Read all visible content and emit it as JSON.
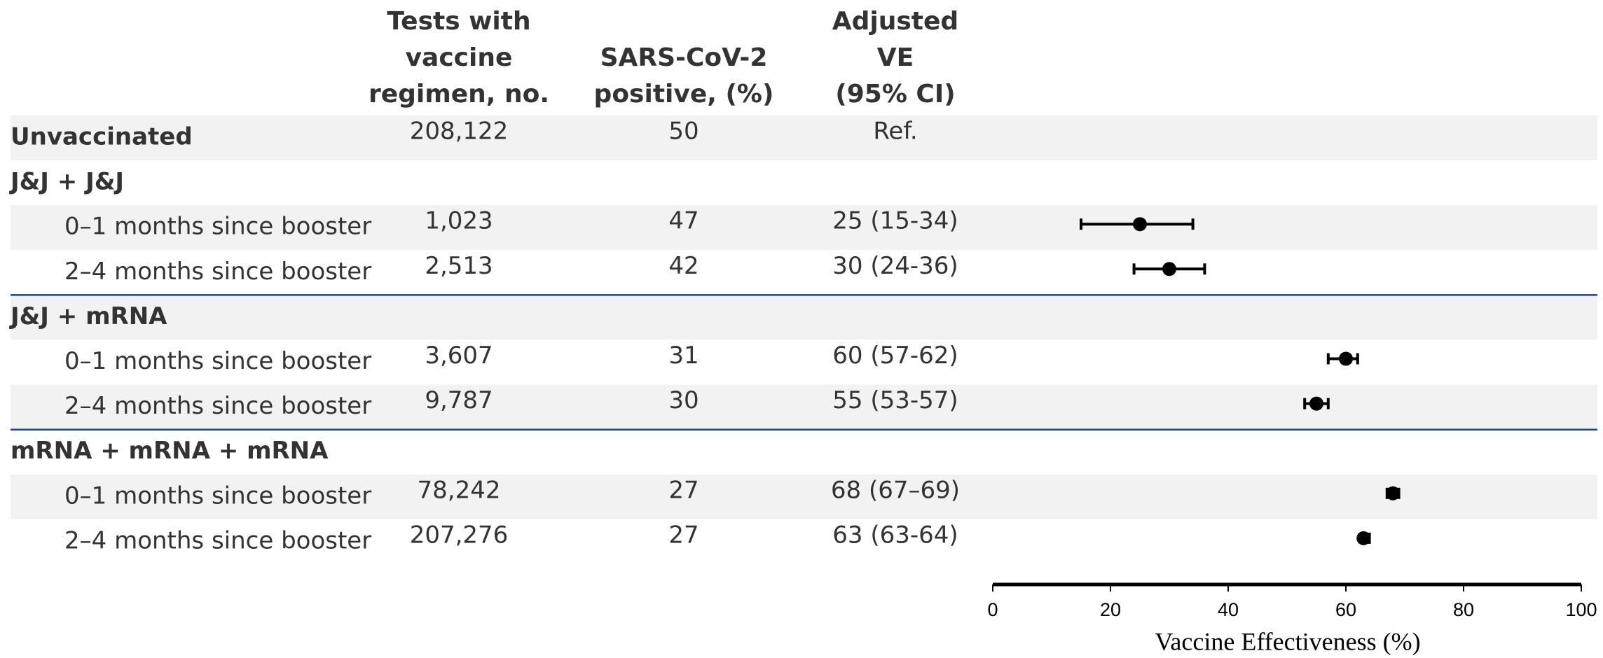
{
  "chart_data": {
    "type": "forest",
    "headers": [
      [
        "Tests with",
        "vaccine",
        "regimen, no."
      ],
      [
        "SARS-CoV-2",
        "positive, (%)"
      ],
      [
        "Adjusted",
        "VE",
        "(95% CI)"
      ]
    ],
    "rows": [
      "Unvaccinated",
      "J&J + J&J",
      "0–1 months since booster",
      "2–4 months since booster",
      "J&J + mRNA",
      "0–1 months since booster",
      "2–4 months since booster",
      "mRNA + mRNA + mRNA",
      "0–1 months since booster",
      "2–4 months since booster"
    ],
    "tests": [
      "208,122",
      null,
      "1,023",
      "2,513",
      null,
      "3,607",
      "9,787",
      null,
      "78,242",
      "207,276"
    ],
    "positive": [
      50,
      null,
      47,
      42,
      null,
      31,
      30,
      null,
      27,
      27
    ],
    "ve_labels": [
      "Ref.",
      null,
      "25 (15-34)",
      "30 (24-36)",
      null,
      "60 (57-62)",
      "55 (53-57)",
      null,
      "68 (67–69)",
      "63 (63-64)"
    ],
    "estimates": [
      null,
      null,
      25,
      30,
      null,
      60,
      55,
      null,
      68,
      63
    ],
    "lower": [
      null,
      null,
      15,
      24,
      null,
      57,
      53,
      null,
      67,
      63
    ],
    "upper": [
      null,
      null,
      34,
      36,
      null,
      62,
      57,
      null,
      69,
      64
    ],
    "xlim": [
      0,
      100
    ],
    "xticks": [
      0,
      20,
      40,
      60,
      80,
      100
    ],
    "xlabel": "Vaccine Effectiveness (%)",
    "color": "#000000"
  }
}
